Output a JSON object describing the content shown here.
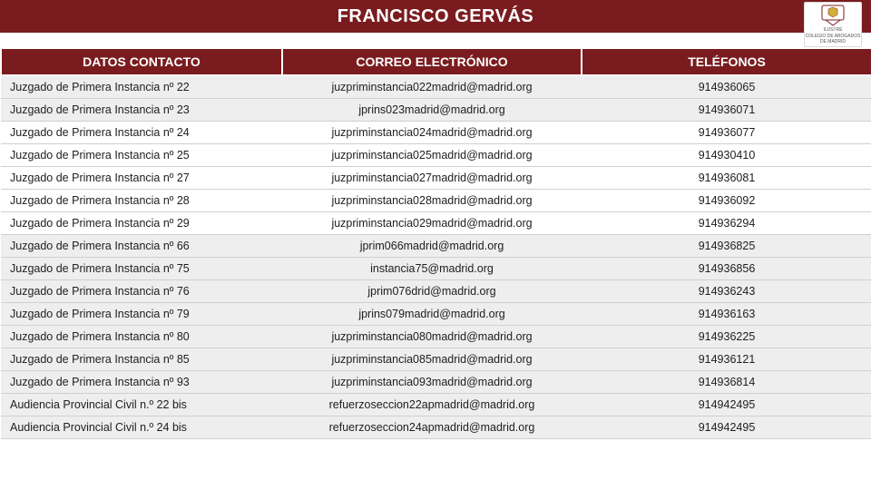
{
  "title": "FRANCISCO GERVÁS",
  "logo_top": "ILUSTRE",
  "logo_bottom": "COLEGIO DE ABOGADOS\nDE MADRID",
  "headers": {
    "contact": "DATOS CONTACTO",
    "email": "CORREO ELECTRÓNICO",
    "phone": "TELÉFONOS"
  },
  "colors": {
    "header_bg": "#7a1c1f",
    "header_fg": "#ffffff",
    "row_alt_bg": "#eeeeee",
    "row_border": "#d0d0d0",
    "text": "#202020"
  },
  "rows": [
    {
      "alt": true,
      "contact": "Juzgado de Primera Instancia nº 22",
      "email": "juzpriminstancia022madrid@madrid.org",
      "phone": "914936065"
    },
    {
      "alt": true,
      "contact": "Juzgado de Primera Instancia nº 23",
      "email": "jprins023madrid@madrid.org",
      "phone": "914936071"
    },
    {
      "alt": false,
      "contact": "Juzgado de Primera Instancia nº 24",
      "email": "juzpriminstancia024madrid@madrid.org",
      "phone": "914936077"
    },
    {
      "alt": false,
      "contact": "Juzgado de Primera Instancia nº 25",
      "email": "juzpriminstancia025madrid@madrid.org",
      "phone": "914930410"
    },
    {
      "alt": false,
      "contact": "Juzgado de Primera Instancia nº 27",
      "email": "juzpriminstancia027madrid@madrid.org",
      "phone": "914936081"
    },
    {
      "alt": false,
      "contact": "Juzgado de Primera Instancia nº 28",
      "email": "juzpriminstancia028madrid@madrid.org",
      "phone": "914936092"
    },
    {
      "alt": false,
      "contact": "Juzgado de Primera Instancia nº 29",
      "email": "juzpriminstancia029madrid@madrid.org",
      "phone": "914936294"
    },
    {
      "alt": true,
      "contact": "Juzgado de Primera Instancia nº 66",
      "email": "jprim066madrid@madrid.org",
      "phone": "914936825"
    },
    {
      "alt": true,
      "contact": "Juzgado de Primera Instancia nº 75",
      "email": "instancia75@madrid.org",
      "phone": "914936856"
    },
    {
      "alt": true,
      "contact": "Juzgado de Primera Instancia nº 76",
      "email": "jprim076drid@madrid.org",
      "phone": "914936243"
    },
    {
      "alt": true,
      "contact": "Juzgado de Primera Instancia nº 79",
      "email": "jprins079madrid@madrid.org",
      "phone": "914936163"
    },
    {
      "alt": true,
      "contact": "Juzgado de Primera Instancia nº 80",
      "email": "juzpriminstancia080madrid@madrid.org",
      "phone": "914936225"
    },
    {
      "alt": true,
      "contact": "Juzgado de Primera Instancia nº 85",
      "email": "juzpriminstancia085madrid@madrid.org",
      "phone": "914936121"
    },
    {
      "alt": true,
      "contact": "Juzgado de Primera Instancia nº 93",
      "email": "juzpriminstancia093madrid@madrid.org",
      "phone": "914936814"
    },
    {
      "alt": true,
      "contact": "Audiencia Provincial Civil n.º 22 bis",
      "email": "refuerzoseccion22apmadrid@madrid.org",
      "phone": "914942495"
    },
    {
      "alt": true,
      "contact": "Audiencia Provincial Civil n.º 24 bis",
      "email": "refuerzoseccion24apmadrid@madrid.org",
      "phone": "914942495"
    }
  ]
}
